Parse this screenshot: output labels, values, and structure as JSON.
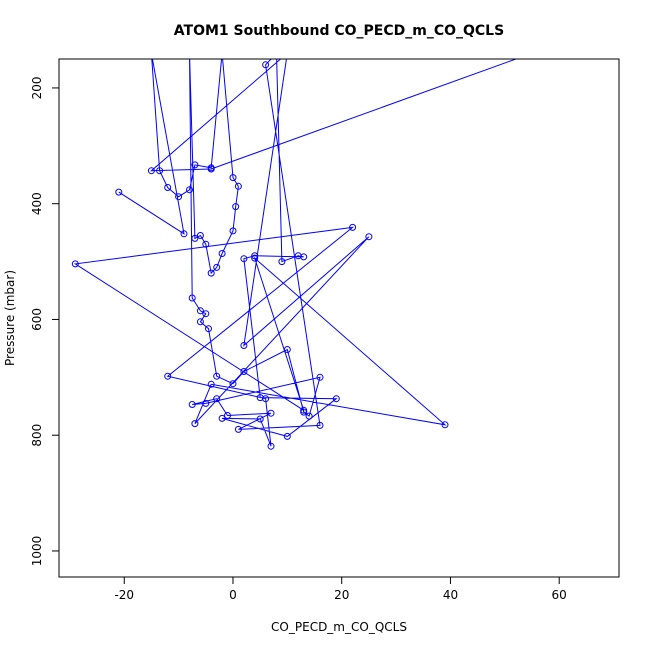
{
  "chart_data": {
    "type": "scatter",
    "title": "ATOM1 Southbound CO_PECD_m_CO_QCLS",
    "xlabel": "CO_PECD_m_CO_QCLS",
    "ylabel": "Pressure (mbar)",
    "xlim": [
      -32,
      71
    ],
    "ylim": [
      1045,
      150
    ],
    "y_axis_reversed": true,
    "x_ticks": [
      -20,
      0,
      20,
      40,
      60
    ],
    "y_ticks": [
      200,
      400,
      600,
      800,
      1000
    ],
    "grid": false,
    "legend": "none",
    "connected": true,
    "color": "#0000ff",
    "points": [
      {
        "x": -21,
        "y": 380
      },
      {
        "x": -9,
        "y": 452
      },
      {
        "x": -15,
        "y": 140
      },
      {
        "x": -13.5,
        "y": 343
      },
      {
        "x": -12,
        "y": 372
      },
      {
        "x": -10,
        "y": 388
      },
      {
        "x": -8,
        "y": 376
      },
      {
        "x": -7,
        "y": 333
      },
      {
        "x": -4,
        "y": 338
      },
      {
        "x": -2,
        "y": 140
      },
      {
        "x": 0,
        "y": 355
      },
      {
        "x": 1,
        "y": 370
      },
      {
        "x": 0.5,
        "y": 405
      },
      {
        "x": 0,
        "y": 447
      },
      {
        "x": -2,
        "y": 486
      },
      {
        "x": -3,
        "y": 510
      },
      {
        "x": -4,
        "y": 520
      },
      {
        "x": -5,
        "y": 470
      },
      {
        "x": -6,
        "y": 455
      },
      {
        "x": -7,
        "y": 460
      },
      {
        "x": -8,
        "y": 140
      },
      {
        "x": -7.5,
        "y": 563
      },
      {
        "x": -6,
        "y": 585
      },
      {
        "x": -5,
        "y": 590
      },
      {
        "x": -6,
        "y": 604
      },
      {
        "x": -4.5,
        "y": 616
      },
      {
        "x": -3,
        "y": 698
      },
      {
        "x": 0,
        "y": 711
      },
      {
        "x": 2,
        "y": 690
      },
      {
        "x": 10,
        "y": 652
      },
      {
        "x": 13,
        "y": 760
      },
      {
        "x": 14,
        "y": 767
      },
      {
        "x": 16,
        "y": 700
      },
      {
        "x": -5,
        "y": 745
      },
      {
        "x": -7.5,
        "y": 747
      },
      {
        "x": -3,
        "y": 737
      },
      {
        "x": -1,
        "y": 766
      },
      {
        "x": 7,
        "y": 762
      },
      {
        "x": 1,
        "y": 790
      },
      {
        "x": 16,
        "y": 783
      },
      {
        "x": 6,
        "y": 160
      },
      {
        "x": 8,
        "y": 140
      },
      {
        "x": 9,
        "y": 500
      },
      {
        "x": 12,
        "y": 490
      },
      {
        "x": 13,
        "y": 492
      },
      {
        "x": 4,
        "y": 490
      },
      {
        "x": 2,
        "y": 495
      },
      {
        "x": 5,
        "y": 735
      },
      {
        "x": 19,
        "y": 737
      },
      {
        "x": 10,
        "y": 802
      },
      {
        "x": -2,
        "y": 771
      },
      {
        "x": 5,
        "y": 772
      },
      {
        "x": 7,
        "y": 819
      },
      {
        "x": 6,
        "y": 737
      },
      {
        "x": -12,
        "y": 698
      },
      {
        "x": 22,
        "y": 441
      },
      {
        "x": -29,
        "y": 504
      },
      {
        "x": 13,
        "y": 757
      },
      {
        "x": 4,
        "y": 494
      },
      {
        "x": 39,
        "y": 782
      },
      {
        "x": -4,
        "y": 712
      },
      {
        "x": -7,
        "y": 780
      },
      {
        "x": 25,
        "y": 457
      },
      {
        "x": 2,
        "y": 645
      },
      {
        "x": 10,
        "y": 140
      },
      {
        "x": -15,
        "y": 343
      },
      {
        "x": -4,
        "y": 340
      },
      {
        "x": 55,
        "y": 140
      }
    ]
  }
}
